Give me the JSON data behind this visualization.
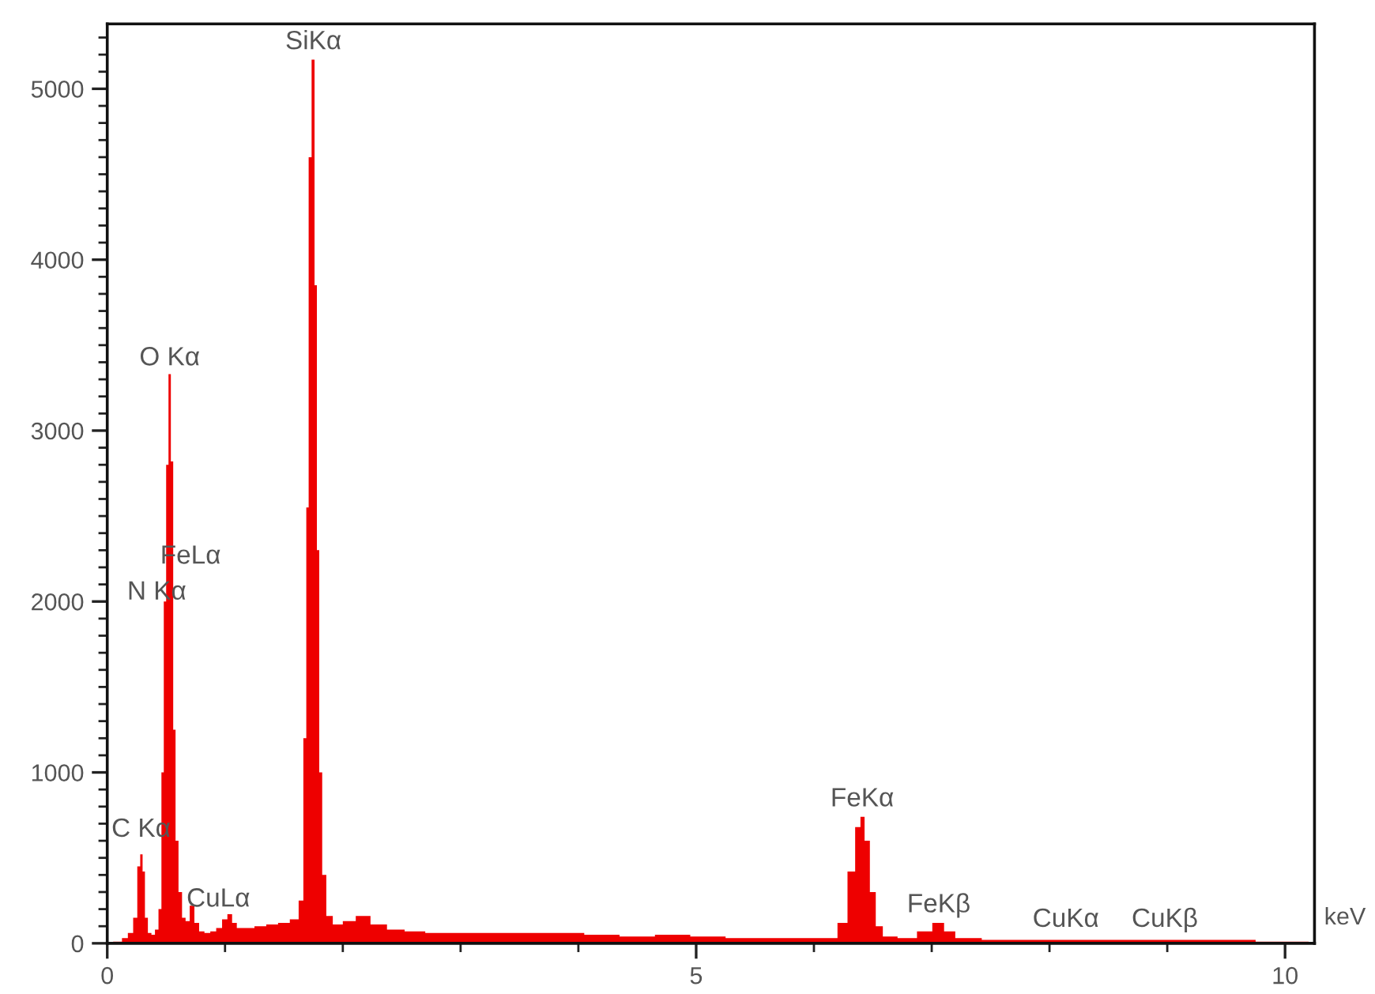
{
  "chart_data": {
    "type": "area",
    "xlabel": "keV",
    "xlim": [
      0,
      10.25
    ],
    "ylim": [
      0,
      5380
    ],
    "xticks": [
      0,
      {
        "value": 1,
        "label": null
      },
      {
        "value": 2,
        "label": null
      },
      {
        "value": 3,
        "label": null
      },
      {
        "value": 4,
        "label": null
      },
      5,
      {
        "value": 6,
        "label": null
      },
      {
        "value": 7,
        "label": null
      },
      {
        "value": 8,
        "label": null
      },
      {
        "value": 9,
        "label": null
      },
      10
    ],
    "yticks": [
      0,
      {
        "value": 100,
        "label": null
      },
      {
        "value": 200,
        "label": null
      },
      {
        "value": 300,
        "label": null
      },
      {
        "value": 400,
        "label": null
      },
      {
        "value": 500,
        "label": null
      },
      {
        "value": 600,
        "label": null
      },
      {
        "value": 700,
        "label": null
      },
      {
        "value": 800,
        "label": null
      },
      {
        "value": 900,
        "label": null
      },
      1000,
      {
        "value": 1100,
        "label": null
      },
      {
        "value": 1200,
        "label": null
      },
      {
        "value": 1300,
        "label": null
      },
      {
        "value": 1400,
        "label": null
      },
      {
        "value": 1500,
        "label": null
      },
      {
        "value": 1600,
        "label": null
      },
      {
        "value": 1700,
        "label": null
      },
      {
        "value": 1800,
        "label": null
      },
      {
        "value": 1900,
        "label": null
      },
      2000,
      {
        "value": 2100,
        "label": null
      },
      {
        "value": 2200,
        "label": null
      },
      {
        "value": 2300,
        "label": null
      },
      {
        "value": 2400,
        "label": null
      },
      {
        "value": 2500,
        "label": null
      },
      {
        "value": 2600,
        "label": null
      },
      {
        "value": 2700,
        "label": null
      },
      {
        "value": 2800,
        "label": null
      },
      {
        "value": 2900,
        "label": null
      },
      3000,
      {
        "value": 3100,
        "label": null
      },
      {
        "value": 3200,
        "label": null
      },
      {
        "value": 3300,
        "label": null
      },
      {
        "value": 3400,
        "label": null
      },
      {
        "value": 3500,
        "label": null
      },
      {
        "value": 3600,
        "label": null
      },
      {
        "value": 3700,
        "label": null
      },
      {
        "value": 3800,
        "label": null
      },
      {
        "value": 3900,
        "label": null
      },
      4000,
      {
        "value": 4100,
        "label": null
      },
      {
        "value": 4200,
        "label": null
      },
      {
        "value": 4300,
        "label": null
      },
      {
        "value": 4400,
        "label": null
      },
      {
        "value": 4500,
        "label": null
      },
      {
        "value": 4600,
        "label": null
      },
      {
        "value": 4700,
        "label": null
      },
      {
        "value": 4800,
        "label": null
      },
      {
        "value": 4900,
        "label": null
      },
      5000,
      {
        "value": 5100,
        "label": null
      },
      {
        "value": 5200,
        "label": null
      },
      {
        "value": 5300,
        "label": null
      }
    ],
    "grid": false,
    "legend": false,
    "series": [
      {
        "color": "#ee0000",
        "x": [
          0.0,
          0.1,
          0.15,
          0.2,
          0.24,
          0.27,
          0.29,
          0.31,
          0.33,
          0.36,
          0.39,
          0.42,
          0.45,
          0.47,
          0.49,
          0.51,
          0.53,
          0.55,
          0.57,
          0.59,
          0.62,
          0.65,
          0.68,
          0.72,
          0.76,
          0.8,
          0.85,
          0.9,
          0.95,
          1.0,
          1.04,
          1.08,
          1.12,
          1.2,
          1.3,
          1.4,
          1.5,
          1.6,
          1.65,
          1.68,
          1.7,
          1.72,
          1.75,
          1.77,
          1.79,
          1.81,
          1.84,
          1.88,
          1.95,
          2.05,
          2.17,
          2.3,
          2.45,
          2.6,
          2.8,
          3.0,
          3.3,
          3.6,
          3.9,
          4.2,
          4.5,
          4.8,
          5.1,
          5.4,
          5.7,
          6.0,
          6.15,
          6.25,
          6.32,
          6.38,
          6.41,
          6.45,
          6.5,
          6.55,
          6.62,
          6.8,
          6.95,
          7.06,
          7.15,
          7.25,
          7.6,
          8.0,
          8.5,
          9.0,
          9.5,
          10.0,
          10.2
        ],
        "values": [
          0,
          10,
          30,
          60,
          150,
          450,
          520,
          420,
          150,
          60,
          50,
          80,
          200,
          1000,
          2000,
          2800,
          3330,
          2820,
          1250,
          600,
          300,
          150,
          130,
          220,
          120,
          70,
          60,
          70,
          90,
          140,
          170,
          120,
          90,
          90,
          100,
          110,
          120,
          140,
          250,
          1200,
          2550,
          4600,
          5170,
          3850,
          2300,
          1000,
          400,
          160,
          110,
          130,
          160,
          110,
          80,
          70,
          60,
          60,
          60,
          60,
          60,
          50,
          40,
          50,
          40,
          30,
          30,
          30,
          30,
          120,
          420,
          680,
          740,
          600,
          300,
          100,
          40,
          30,
          70,
          120,
          70,
          30,
          20,
          20,
          20,
          20,
          20,
          10,
          10
        ]
      }
    ],
    "annotations": [
      {
        "text": "SiKα",
        "x": 1.75,
        "y": 5200
      },
      {
        "text": "O Kα",
        "x": 0.53,
        "y": 3350
      },
      "FeLα",
      "N Kα",
      "C Kα",
      "CuLα",
      {
        "text": "FeKα",
        "x": 6.41,
        "y": 770
      },
      {
        "text": "FeKβ",
        "x": 7.06,
        "y": 150
      },
      "CuKα",
      "CuKβ"
    ]
  }
}
